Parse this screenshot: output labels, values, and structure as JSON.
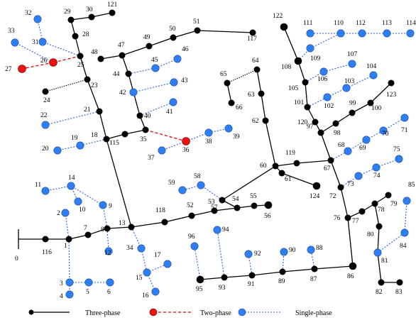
{
  "colors": {
    "three_phase": "#000000",
    "two_phase": "#ee1111",
    "single_phase": "#2f7ff2",
    "single_phase_line": "#2a5fe0"
  },
  "legend": {
    "three_phase": "Three-phase",
    "two_phase": "Two-phase",
    "single_phase": "Single-phase"
  },
  "nodes": [
    {
      "id": "0",
      "type": "source"
    },
    {
      "id": "116",
      "type": "three"
    },
    {
      "id": "1",
      "type": "three"
    },
    {
      "id": "2",
      "type": "single"
    },
    {
      "id": "3",
      "type": "single"
    },
    {
      "id": "4",
      "type": "single"
    },
    {
      "id": "5",
      "type": "single"
    },
    {
      "id": "6",
      "type": "single"
    },
    {
      "id": "7",
      "type": "three"
    },
    {
      "id": "8",
      "type": "three"
    },
    {
      "id": "9",
      "type": "single"
    },
    {
      "id": "10",
      "type": "single"
    },
    {
      "id": "11",
      "type": "single"
    },
    {
      "id": "12",
      "type": "single"
    },
    {
      "id": "13",
      "type": "three"
    },
    {
      "id": "14",
      "type": "single"
    },
    {
      "id": "15",
      "type": "single"
    },
    {
      "id": "16",
      "type": "single"
    },
    {
      "id": "17",
      "type": "single"
    },
    {
      "id": "18",
      "type": "three"
    },
    {
      "id": "19",
      "type": "single"
    },
    {
      "id": "20",
      "type": "single"
    },
    {
      "id": "21",
      "type": "three"
    },
    {
      "id": "22",
      "type": "single"
    },
    {
      "id": "23",
      "type": "three"
    },
    {
      "id": "24",
      "type": "three"
    },
    {
      "id": "25",
      "type": "three"
    },
    {
      "id": "26",
      "type": "two"
    },
    {
      "id": "27",
      "type": "two"
    },
    {
      "id": "28",
      "type": "three"
    },
    {
      "id": "29",
      "type": "three"
    },
    {
      "id": "30",
      "type": "three"
    },
    {
      "id": "121",
      "type": "three"
    },
    {
      "id": "31",
      "type": "single"
    },
    {
      "id": "32",
      "type": "single"
    },
    {
      "id": "33",
      "type": "single"
    },
    {
      "id": "34",
      "type": "single"
    },
    {
      "id": "35",
      "type": "three"
    },
    {
      "id": "36",
      "type": "two"
    },
    {
      "id": "37",
      "type": "single"
    },
    {
      "id": "38",
      "type": "single"
    },
    {
      "id": "39",
      "type": "single"
    },
    {
      "id": "40",
      "type": "three"
    },
    {
      "id": "41",
      "type": "single"
    },
    {
      "id": "42",
      "type": "single"
    },
    {
      "id": "43",
      "type": "single"
    },
    {
      "id": "44",
      "type": "three"
    },
    {
      "id": "45",
      "type": "single"
    },
    {
      "id": "46",
      "type": "single"
    },
    {
      "id": "47",
      "type": "three"
    },
    {
      "id": "48",
      "type": "three"
    },
    {
      "id": "49",
      "type": "three"
    },
    {
      "id": "50",
      "type": "three"
    },
    {
      "id": "51",
      "type": "three"
    },
    {
      "id": "117",
      "type": "three"
    },
    {
      "id": "115",
      "type": "three"
    },
    {
      "id": "118",
      "type": "three"
    },
    {
      "id": "52",
      "type": "three"
    },
    {
      "id": "53",
      "type": "three"
    },
    {
      "id": "54",
      "type": "three"
    },
    {
      "id": "55",
      "type": "three"
    },
    {
      "id": "56",
      "type": "three"
    },
    {
      "id": "57",
      "type": "three"
    },
    {
      "id": "58",
      "type": "single"
    },
    {
      "id": "59",
      "type": "single"
    },
    {
      "id": "60",
      "type": "three"
    },
    {
      "id": "61",
      "type": "three"
    },
    {
      "id": "124",
      "type": "three"
    },
    {
      "id": "62",
      "type": "three"
    },
    {
      "id": "63",
      "type": "three"
    },
    {
      "id": "64",
      "type": "three"
    },
    {
      "id": "65",
      "type": "three"
    },
    {
      "id": "66",
      "type": "three"
    },
    {
      "id": "119",
      "type": "three"
    },
    {
      "id": "67",
      "type": "three"
    },
    {
      "id": "68",
      "type": "single"
    },
    {
      "id": "69",
      "type": "single"
    },
    {
      "id": "70",
      "type": "single"
    },
    {
      "id": "71",
      "type": "single"
    },
    {
      "id": "72",
      "type": "three"
    },
    {
      "id": "73",
      "type": "single"
    },
    {
      "id": "74",
      "type": "single"
    },
    {
      "id": "75",
      "type": "single"
    },
    {
      "id": "76",
      "type": "three"
    },
    {
      "id": "77",
      "type": "three"
    },
    {
      "id": "78",
      "type": "three"
    },
    {
      "id": "79",
      "type": "three"
    },
    {
      "id": "80",
      "type": "three"
    },
    {
      "id": "81",
      "type": "single"
    },
    {
      "id": "82",
      "type": "three"
    },
    {
      "id": "83",
      "type": "three"
    },
    {
      "id": "84",
      "type": "single"
    },
    {
      "id": "85",
      "type": "single"
    },
    {
      "id": "86",
      "type": "three"
    },
    {
      "id": "87",
      "type": "three"
    },
    {
      "id": "88",
      "type": "single"
    },
    {
      "id": "89",
      "type": "three"
    },
    {
      "id": "90",
      "type": "single"
    },
    {
      "id": "91",
      "type": "three"
    },
    {
      "id": "92",
      "type": "single"
    },
    {
      "id": "93",
      "type": "three"
    },
    {
      "id": "94",
      "type": "single"
    },
    {
      "id": "95",
      "type": "three"
    },
    {
      "id": "96",
      "type": "single"
    },
    {
      "id": "97",
      "type": "three"
    },
    {
      "id": "98",
      "type": "three"
    },
    {
      "id": "99",
      "type": "three"
    },
    {
      "id": "100",
      "type": "three"
    },
    {
      "id": "123",
      "type": "three"
    },
    {
      "id": "101",
      "type": "three"
    },
    {
      "id": "102",
      "type": "single"
    },
    {
      "id": "103",
      "type": "single"
    },
    {
      "id": "104",
      "type": "single"
    },
    {
      "id": "105",
      "type": "three"
    },
    {
      "id": "106",
      "type": "single"
    },
    {
      "id": "107",
      "type": "single"
    },
    {
      "id": "108",
      "type": "three"
    },
    {
      "id": "109",
      "type": "single"
    },
    {
      "id": "110",
      "type": "single"
    },
    {
      "id": "111",
      "type": "single"
    },
    {
      "id": "112",
      "type": "single"
    },
    {
      "id": "113",
      "type": "single"
    },
    {
      "id": "114",
      "type": "single"
    },
    {
      "id": "120",
      "type": "three"
    },
    {
      "id": "122",
      "type": "three"
    }
  ],
  "edges": [
    [
      "0",
      "116",
      "three"
    ],
    [
      "116",
      "1",
      "three"
    ],
    [
      "1",
      "7",
      "three"
    ],
    [
      "7",
      "8",
      "three"
    ],
    [
      "8",
      "13",
      "three"
    ],
    [
      "13",
      "118",
      "three"
    ],
    [
      "118",
      "52",
      "three"
    ],
    [
      "52",
      "53",
      "three"
    ],
    [
      "53",
      "54",
      "three"
    ],
    [
      "54",
      "55",
      "three"
    ],
    [
      "55",
      "56",
      "three"
    ],
    [
      "54",
      "57",
      "three"
    ],
    [
      "57",
      "60",
      "three"
    ],
    [
      "60",
      "119",
      "three"
    ],
    [
      "119",
      "67",
      "three"
    ],
    [
      "60",
      "62",
      "three"
    ],
    [
      "62",
      "63",
      "three"
    ],
    [
      "63",
      "64",
      "three"
    ],
    [
      "65",
      "66",
      "three"
    ],
    [
      "65",
      "64",
      "link"
    ],
    [
      "60",
      "61",
      "three"
    ],
    [
      "61",
      "124",
      "three"
    ],
    [
      "67",
      "97",
      "three"
    ],
    [
      "97",
      "120",
      "three"
    ],
    [
      "120",
      "101",
      "three"
    ],
    [
      "101",
      "105",
      "three"
    ],
    [
      "105",
      "108",
      "three"
    ],
    [
      "108",
      "122",
      "three"
    ],
    [
      "97",
      "98",
      "three"
    ],
    [
      "98",
      "99",
      "three"
    ],
    [
      "99",
      "100",
      "three"
    ],
    [
      "100",
      "123",
      "three"
    ],
    [
      "67",
      "72",
      "three"
    ],
    [
      "72",
      "76",
      "three"
    ],
    [
      "76",
      "86",
      "three"
    ],
    [
      "76",
      "77",
      "three"
    ],
    [
      "77",
      "78",
      "three"
    ],
    [
      "78",
      "79",
      "three"
    ],
    [
      "78",
      "80",
      "three"
    ],
    [
      "80",
      "81",
      "three"
    ],
    [
      "81",
      "82",
      "three"
    ],
    [
      "82",
      "83",
      "three"
    ],
    [
      "86",
      "87",
      "three"
    ],
    [
      "87",
      "89",
      "three"
    ],
    [
      "89",
      "91",
      "three"
    ],
    [
      "91",
      "93",
      "three"
    ],
    [
      "93",
      "95",
      "three"
    ],
    [
      "13",
      "18",
      "three"
    ],
    [
      "18",
      "21",
      "three"
    ],
    [
      "21",
      "23",
      "three"
    ],
    [
      "23",
      "25",
      "three"
    ],
    [
      "25",
      "28",
      "three"
    ],
    [
      "28",
      "29",
      "three"
    ],
    [
      "29",
      "30",
      "three"
    ],
    [
      "30",
      "121",
      "three"
    ],
    [
      "18",
      "115",
      "three"
    ],
    [
      "115",
      "35",
      "three"
    ],
    [
      "35",
      "40",
      "three"
    ],
    [
      "40",
      "44",
      "three"
    ],
    [
      "44",
      "47",
      "three"
    ],
    [
      "47",
      "48",
      "three"
    ],
    [
      "47",
      "49",
      "three"
    ],
    [
      "49",
      "50",
      "three"
    ],
    [
      "50",
      "51",
      "three"
    ],
    [
      "51",
      "117",
      "three"
    ],
    [
      "23",
      "24",
      "link"
    ],
    [
      "25",
      "26",
      "two"
    ],
    [
      "26",
      "27",
      "two"
    ],
    [
      "35",
      "36",
      "two"
    ],
    [
      "1",
      "2",
      "single"
    ],
    [
      "1",
      "3",
      "single"
    ],
    [
      "3",
      "4",
      "single"
    ],
    [
      "3",
      "5",
      "single"
    ],
    [
      "5",
      "6",
      "single"
    ],
    [
      "8",
      "9",
      "single"
    ],
    [
      "9",
      "14",
      "single"
    ],
    [
      "14",
      "11",
      "single"
    ],
    [
      "14",
      "10",
      "single"
    ],
    [
      "8",
      "12",
      "single"
    ],
    [
      "13",
      "34",
      "single"
    ],
    [
      "34",
      "15",
      "single"
    ],
    [
      "15",
      "16",
      "single"
    ],
    [
      "15",
      "17",
      "single"
    ],
    [
      "18",
      "19",
      "single"
    ],
    [
      "19",
      "20",
      "single"
    ],
    [
      "21",
      "22",
      "single"
    ],
    [
      "25",
      "31",
      "single"
    ],
    [
      "31",
      "32",
      "single"
    ],
    [
      "26",
      "33",
      "single"
    ],
    [
      "36",
      "37",
      "single"
    ],
    [
      "36",
      "38",
      "single"
    ],
    [
      "38",
      "39",
      "single"
    ],
    [
      "40",
      "41",
      "single"
    ],
    [
      "42",
      "43",
      "single"
    ],
    [
      "44",
      "45",
      "single"
    ],
    [
      "45",
      "46",
      "single"
    ],
    [
      "57",
      "58",
      "single"
    ],
    [
      "58",
      "59",
      "single"
    ],
    [
      "67",
      "68",
      "single"
    ],
    [
      "68",
      "69",
      "single"
    ],
    [
      "69",
      "70",
      "single"
    ],
    [
      "70",
      "71",
      "single"
    ],
    [
      "72",
      "73",
      "single"
    ],
    [
      "73",
      "74",
      "single"
    ],
    [
      "74",
      "75",
      "single"
    ],
    [
      "81",
      "84",
      "single"
    ],
    [
      "84",
      "85",
      "single"
    ],
    [
      "87",
      "88",
      "single"
    ],
    [
      "89",
      "90",
      "single"
    ],
    [
      "91",
      "92",
      "single"
    ],
    [
      "93",
      "94",
      "single"
    ],
    [
      "95",
      "96",
      "single"
    ],
    [
      "101",
      "102",
      "single"
    ],
    [
      "102",
      "103",
      "single"
    ],
    [
      "103",
      "104",
      "single"
    ],
    [
      "105",
      "106",
      "single"
    ],
    [
      "106",
      "107",
      "single"
    ],
    [
      "108",
      "109",
      "single"
    ],
    [
      "109",
      "110",
      "single"
    ],
    [
      "110",
      "111",
      "single"
    ],
    [
      "110",
      "112",
      "single"
    ],
    [
      "112",
      "113",
      "single"
    ],
    [
      "113",
      "114",
      "single"
    ]
  ]
}
